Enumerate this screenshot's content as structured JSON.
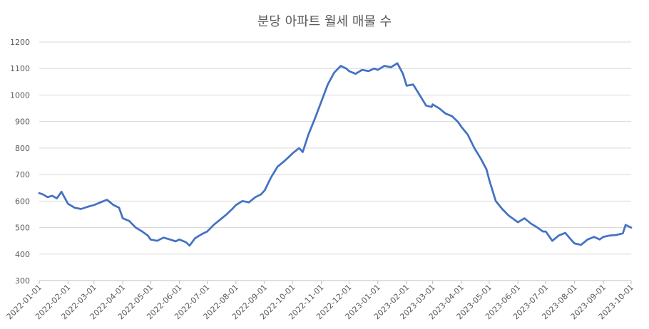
{
  "chart_data": {
    "type": "line",
    "title": "분당 아파트 월세 매물 수",
    "xlabel": "",
    "ylabel": "",
    "ylim": [
      300,
      1200
    ],
    "y_ticks": [
      300,
      400,
      500,
      600,
      700,
      800,
      900,
      1000,
      1100,
      1200
    ],
    "x_ticks": [
      "2022-01-01",
      "2022-02-01",
      "2022-03-01",
      "2022-04-01",
      "2022-05-01",
      "2022-06-01",
      "2022-07-01",
      "2022-08-01",
      "2022-09-01",
      "2022-10-01",
      "2022-11-01",
      "2022-12-01",
      "2023-01-01",
      "2023-02-01",
      "2023-03-01",
      "2023-04-01",
      "2023-05-01",
      "2023-06-01",
      "2023-07-01",
      "2023-08-01",
      "2023-09-01",
      "2023-10-01"
    ],
    "grid": true,
    "legend": "none",
    "series": [
      {
        "color": "#4472C4",
        "points": [
          [
            "2022-01-01",
            630
          ],
          [
            "2022-01-05",
            625
          ],
          [
            "2022-01-10",
            615
          ],
          [
            "2022-01-15",
            620
          ],
          [
            "2022-01-20",
            610
          ],
          [
            "2022-01-25",
            635
          ],
          [
            "2022-02-01",
            590
          ],
          [
            "2022-02-08",
            575
          ],
          [
            "2022-02-15",
            570
          ],
          [
            "2022-02-22",
            578
          ],
          [
            "2022-03-01",
            585
          ],
          [
            "2022-03-08",
            595
          ],
          [
            "2022-03-15",
            605
          ],
          [
            "2022-03-22",
            585
          ],
          [
            "2022-03-28",
            575
          ],
          [
            "2022-04-01",
            535
          ],
          [
            "2022-04-08",
            525
          ],
          [
            "2022-04-15",
            500
          ],
          [
            "2022-04-22",
            485
          ],
          [
            "2022-04-28",
            470
          ],
          [
            "2022-05-01",
            455
          ],
          [
            "2022-05-08",
            450
          ],
          [
            "2022-05-15",
            462
          ],
          [
            "2022-05-22",
            455
          ],
          [
            "2022-05-28",
            448
          ],
          [
            "2022-06-01",
            455
          ],
          [
            "2022-06-08",
            445
          ],
          [
            "2022-06-12",
            432
          ],
          [
            "2022-06-18",
            460
          ],
          [
            "2022-06-25",
            475
          ],
          [
            "2022-07-01",
            485
          ],
          [
            "2022-07-08",
            510
          ],
          [
            "2022-07-15",
            530
          ],
          [
            "2022-07-22",
            550
          ],
          [
            "2022-07-28",
            570
          ],
          [
            "2022-08-01",
            585
          ],
          [
            "2022-08-08",
            600
          ],
          [
            "2022-08-15",
            595
          ],
          [
            "2022-08-22",
            615
          ],
          [
            "2022-08-28",
            625
          ],
          [
            "2022-09-01",
            640
          ],
          [
            "2022-09-08",
            690
          ],
          [
            "2022-09-15",
            730
          ],
          [
            "2022-09-22",
            750
          ],
          [
            "2022-09-28",
            770
          ],
          [
            "2022-10-01",
            780
          ],
          [
            "2022-10-08",
            800
          ],
          [
            "2022-10-12",
            785
          ],
          [
            "2022-10-18",
            850
          ],
          [
            "2022-10-25",
            910
          ],
          [
            "2022-11-01",
            975
          ],
          [
            "2022-11-08",
            1040
          ],
          [
            "2022-11-15",
            1085
          ],
          [
            "2022-11-22",
            1110
          ],
          [
            "2022-11-28",
            1100
          ],
          [
            "2022-12-01",
            1090
          ],
          [
            "2022-12-08",
            1080
          ],
          [
            "2022-12-15",
            1095
          ],
          [
            "2022-12-22",
            1090
          ],
          [
            "2022-12-28",
            1100
          ],
          [
            "2023-01-01",
            1095
          ],
          [
            "2023-01-08",
            1110
          ],
          [
            "2023-01-15",
            1105
          ],
          [
            "2023-01-22",
            1120
          ],
          [
            "2023-01-28",
            1080
          ],
          [
            "2023-02-01",
            1035
          ],
          [
            "2023-02-08",
            1040
          ],
          [
            "2023-02-15",
            1000
          ],
          [
            "2023-02-22",
            960
          ],
          [
            "2023-02-28",
            955
          ],
          [
            "2023-03-01",
            965
          ],
          [
            "2023-03-08",
            950
          ],
          [
            "2023-03-15",
            930
          ],
          [
            "2023-03-22",
            920
          ],
          [
            "2023-03-28",
            900
          ],
          [
            "2023-04-01",
            880
          ],
          [
            "2023-04-08",
            850
          ],
          [
            "2023-04-15",
            800
          ],
          [
            "2023-04-22",
            760
          ],
          [
            "2023-04-28",
            720
          ],
          [
            "2023-05-01",
            680
          ],
          [
            "2023-05-08",
            600
          ],
          [
            "2023-05-15",
            570
          ],
          [
            "2023-05-22",
            545
          ],
          [
            "2023-05-28",
            530
          ],
          [
            "2023-06-01",
            520
          ],
          [
            "2023-06-08",
            535
          ],
          [
            "2023-06-15",
            515
          ],
          [
            "2023-06-22",
            500
          ],
          [
            "2023-06-28",
            485
          ],
          [
            "2023-07-01",
            485
          ],
          [
            "2023-07-08",
            450
          ],
          [
            "2023-07-15",
            470
          ],
          [
            "2023-07-22",
            480
          ],
          [
            "2023-07-28",
            455
          ],
          [
            "2023-08-01",
            440
          ],
          [
            "2023-08-08",
            435
          ],
          [
            "2023-08-15",
            455
          ],
          [
            "2023-08-22",
            465
          ],
          [
            "2023-08-28",
            455
          ],
          [
            "2023-09-01",
            465
          ],
          [
            "2023-09-08",
            470
          ],
          [
            "2023-09-15",
            472
          ],
          [
            "2023-09-22",
            478
          ],
          [
            "2023-09-25",
            510
          ],
          [
            "2023-10-01",
            500
          ]
        ]
      }
    ]
  }
}
